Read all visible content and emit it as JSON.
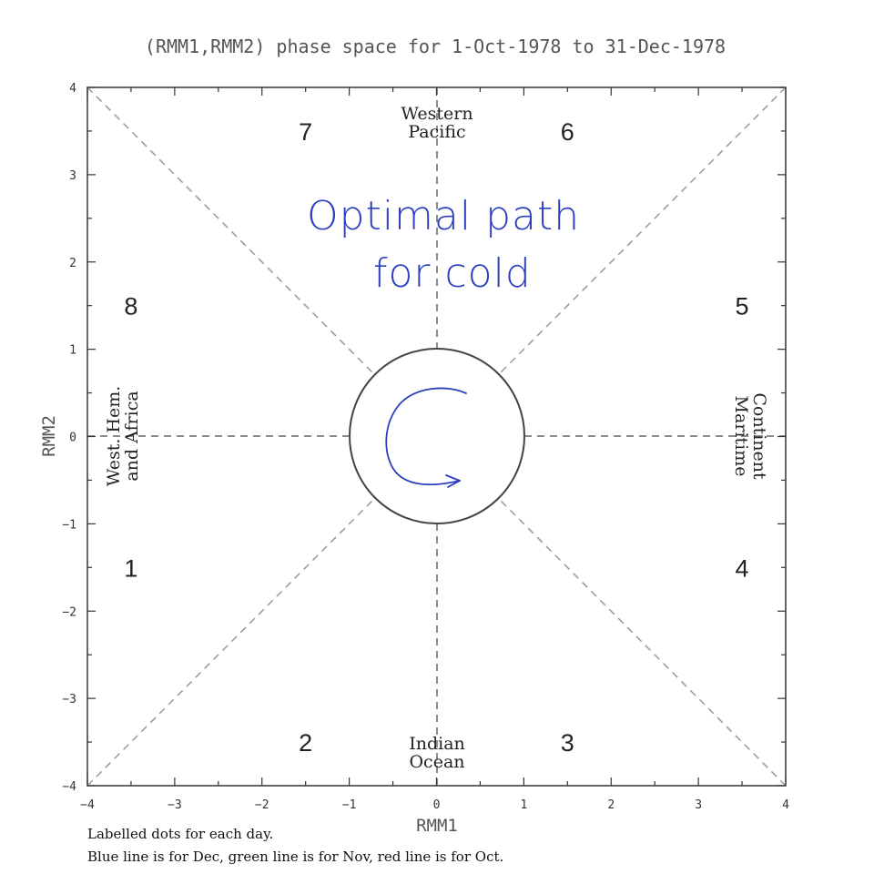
{
  "chart_data": {
    "type": "scatter",
    "title": "(RMM1,RMM2) phase space for  1-Oct-1978 to 31-Dec-1978",
    "xlabel": "RMM1",
    "ylabel": "RMM2",
    "xlim": [
      -4,
      4
    ],
    "ylim": [
      -4,
      4
    ],
    "xticks": [
      -4,
      -3,
      -2,
      -1,
      0,
      1,
      2,
      3,
      4
    ],
    "yticks": [
      -4,
      -3,
      -2,
      -1,
      0,
      1,
      2,
      3,
      4
    ],
    "tick_labels": {
      "x": [
        "−4",
        "−3",
        "−2",
        "−1",
        "0",
        "1",
        "2",
        "3",
        "4"
      ],
      "y": [
        "−4",
        "−3",
        "−2",
        "−1",
        "0",
        "1",
        "2",
        "3",
        "4"
      ]
    },
    "grid": false,
    "unit_circle_radius": 1,
    "phases": [
      {
        "label": "1",
        "x": -3.5,
        "y": -1.5
      },
      {
        "label": "2",
        "x": -1.5,
        "y": -3.5
      },
      {
        "label": "3",
        "x": 1.5,
        "y": -3.5
      },
      {
        "label": "4",
        "x": 3.5,
        "y": -1.5
      },
      {
        "label": "5",
        "x": 3.5,
        "y": 1.5
      },
      {
        "label": "6",
        "x": 1.5,
        "y": 3.5
      },
      {
        "label": "7",
        "x": -1.5,
        "y": 3.5
      },
      {
        "label": "8",
        "x": -3.5,
        "y": 1.5
      }
    ],
    "regions": {
      "top": [
        "Western",
        "Pacific"
      ],
      "bottom": [
        "Indian",
        "Ocean"
      ],
      "left": [
        "West. Hem.",
        "and Africa"
      ],
      "right": [
        "Maritime",
        "Continent"
      ]
    },
    "series": [],
    "annotations": {
      "handwritten_line1": "Optimal path",
      "handwritten_line2": "for cold"
    },
    "captions": [
      "Labelled dots for each day.",
      "Blue line is for Dec, green line is for Nov, red line is for Oct."
    ],
    "colors": {
      "handwriting": "#2c3fbf",
      "dashed_lines": "#999999",
      "circle": "#444444",
      "axes": "#333333"
    }
  }
}
